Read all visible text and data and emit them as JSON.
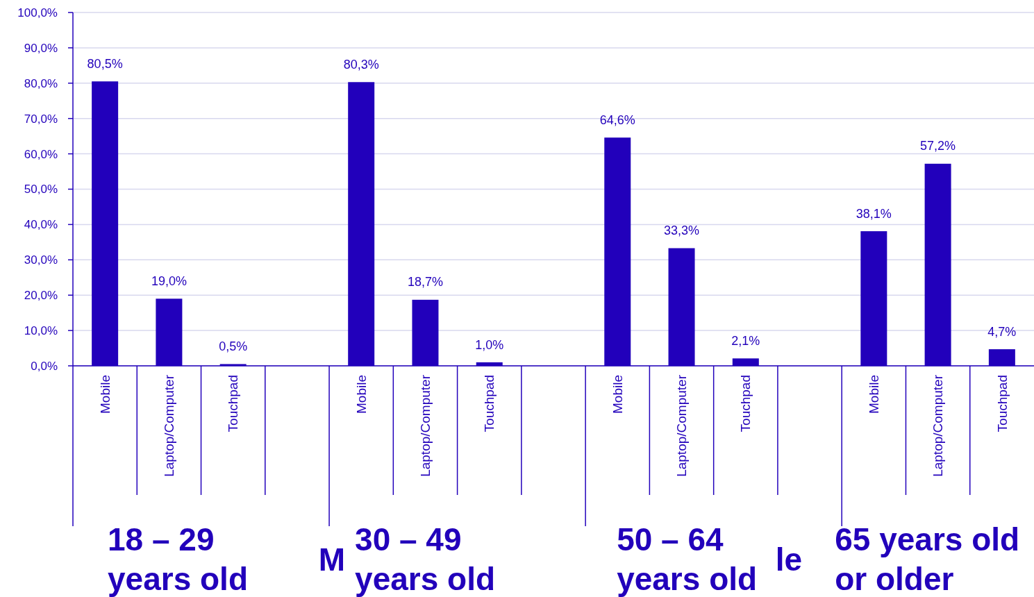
{
  "chart_data": {
    "type": "bar",
    "categories": [
      "Mobile",
      "Laptop/Computer",
      "Touchpad",
      null,
      "Mobile",
      "Laptop/Computer",
      "Touchpad",
      null,
      "Mobile",
      "Laptop/Computer",
      "Touchpad",
      null,
      "Mobile",
      "Laptop/Computer",
      "Touchpad"
    ],
    "values": [
      80.5,
      19.0,
      0.5,
      null,
      80.3,
      18.7,
      1.0,
      null,
      64.6,
      33.3,
      2.1,
      null,
      38.1,
      57.2,
      4.7
    ],
    "value_labels": [
      "80,5%",
      "19,0%",
      "0,5%",
      null,
      "80,3%",
      "18,7%",
      "1,0%",
      null,
      "64,6%",
      "33,3%",
      "2,1%",
      null,
      "38,1%",
      "57,2%",
      "4,7%"
    ],
    "color": "#2200bb",
    "ylim": [
      0,
      100
    ],
    "yticks": [
      {
        "value": 0,
        "label": "0,0%"
      },
      {
        "value": 10,
        "label": "10,0%"
      },
      {
        "value": 20,
        "label": "20,0%"
      },
      {
        "value": 30,
        "label": "30,0%"
      },
      {
        "value": 40,
        "label": "40,0%"
      },
      {
        "value": 50,
        "label": "50,0%"
      },
      {
        "value": 60,
        "label": "60,0%"
      },
      {
        "value": 70,
        "label": "70,0%"
      },
      {
        "value": 80,
        "label": "80,0%"
      },
      {
        "value": 90,
        "label": "90,0%"
      },
      {
        "value": 100,
        "label": "100,0%"
      }
    ],
    "grid": "y",
    "annotations": [
      "18 – 29 years old",
      "30 – 49 years old",
      "50 – 64 years old",
      "65 years old or older",
      "M",
      "le"
    ]
  }
}
